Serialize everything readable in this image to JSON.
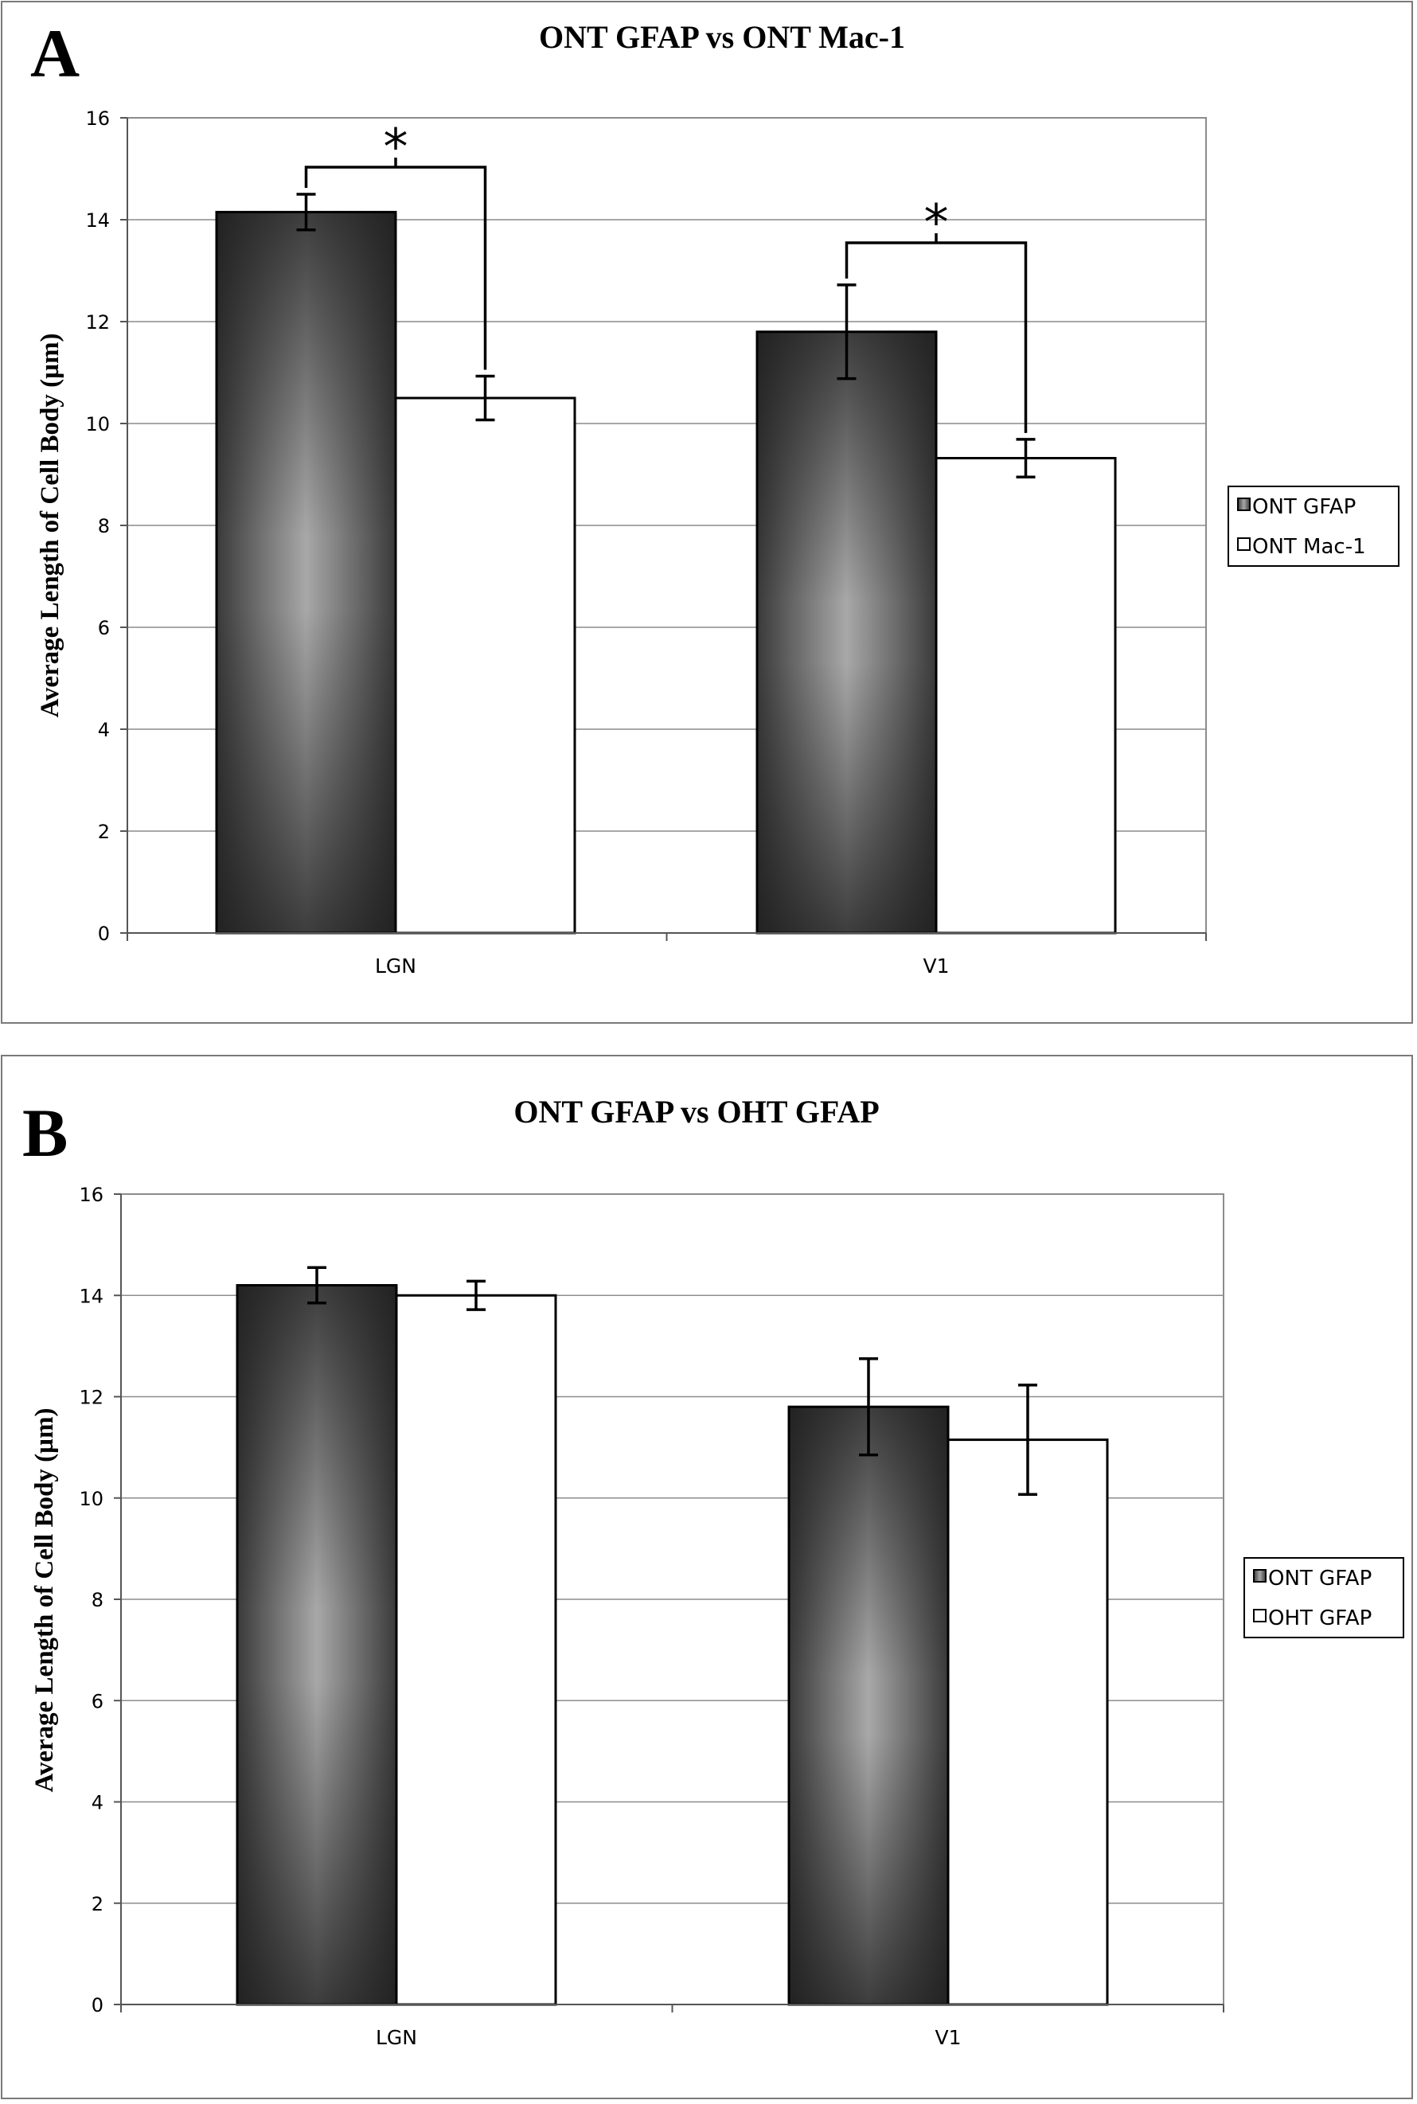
{
  "chart_data": [
    {
      "panel": "A",
      "type": "bar",
      "title": "ONT GFAP vs ONT Mac-1",
      "xlabel": "",
      "ylabel": "Average Length of Cell Body (µm)",
      "ylim": [
        0,
        16
      ],
      "yticks": [
        0,
        2,
        4,
        6,
        8,
        10,
        12,
        14,
        16
      ],
      "grid": true,
      "legend_position": "right",
      "categories": [
        "LGN",
        "V1"
      ],
      "series": [
        {
          "name": "ONT GFAP",
          "values": [
            14.15,
            11.8
          ],
          "errors": [
            0.35,
            0.92
          ],
          "style": "dark-gradient"
        },
        {
          "name": "ONT Mac-1",
          "values": [
            10.5,
            9.32
          ],
          "errors": [
            0.43,
            0.37
          ],
          "style": "white"
        }
      ],
      "significance": [
        {
          "category": "LGN",
          "label": "*"
        },
        {
          "category": "V1",
          "label": "*"
        }
      ]
    },
    {
      "panel": "B",
      "type": "bar",
      "title": "ONT GFAP vs OHT GFAP",
      "xlabel": "",
      "ylabel": "Average Length of Cell Body (µm)",
      "ylim": [
        0,
        16
      ],
      "yticks": [
        0,
        2,
        4,
        6,
        8,
        10,
        12,
        14,
        16
      ],
      "grid": true,
      "legend_position": "right",
      "categories": [
        "LGN",
        "V1"
      ],
      "series": [
        {
          "name": "ONT GFAP",
          "values": [
            14.2,
            11.8
          ],
          "errors": [
            0.35,
            0.95
          ],
          "style": "dark-gradient"
        },
        {
          "name": "OHT GFAP",
          "values": [
            14.0,
            11.15
          ],
          "errors": [
            0.28,
            1.08
          ],
          "style": "white"
        }
      ],
      "significance": []
    }
  ]
}
